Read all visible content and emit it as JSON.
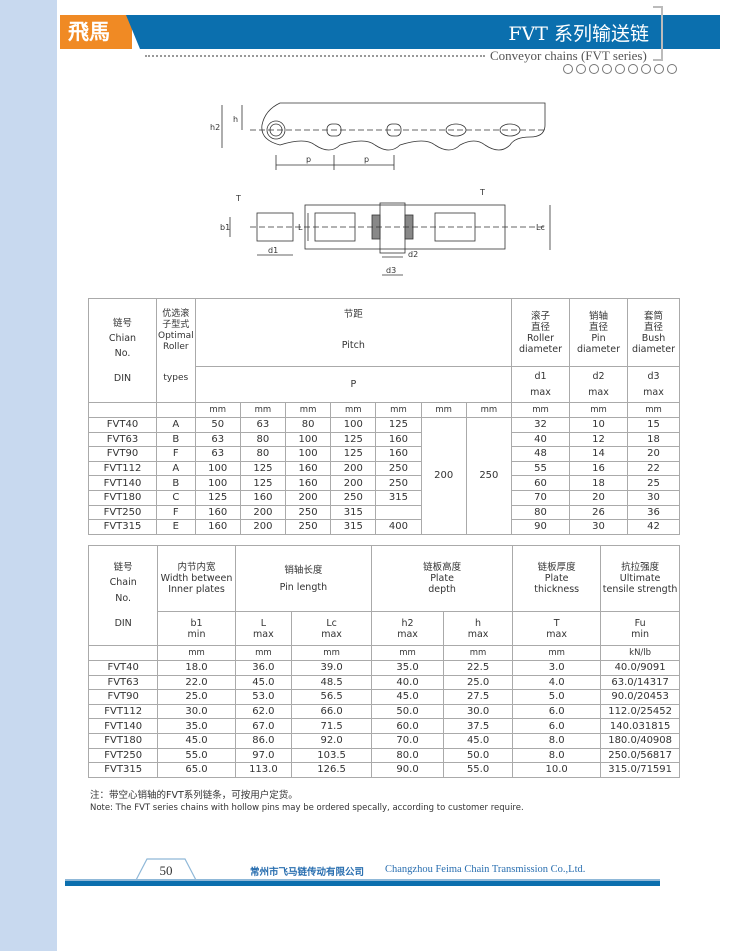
{
  "header": {
    "logo": "飛馬",
    "title": "FVT 系列输送链",
    "subtitle": "Conveyor chains (FVT series)",
    "brand_colors": {
      "orange": "#f08a24",
      "blue": "#0b6fae"
    }
  },
  "diagram": {
    "labels": [
      "h2",
      "h",
      "p",
      "p",
      "T",
      "b1",
      "L",
      "d1",
      "d2",
      "d3",
      "T",
      "Lc"
    ]
  },
  "table1": {
    "h_chain": [
      "链号",
      "Chian",
      "No.",
      "DIN"
    ],
    "h_roller": [
      "优选滚",
      "子型式",
      "Optimal",
      "Roller",
      "types"
    ],
    "h_pitch": [
      "节距",
      "Pitch",
      "P"
    ],
    "h_d1": [
      "滚子",
      "直径",
      "Roller",
      "diameter",
      "d1",
      "max"
    ],
    "h_d2": [
      "销轴",
      "直径",
      "Pin",
      "diameter",
      "d2",
      "max"
    ],
    "h_d3": [
      "套筒",
      "直径",
      "Bush",
      "diameter",
      "d3",
      "max"
    ],
    "unit": "mm",
    "merged_pitch": [
      "200",
      "250"
    ],
    "rows": [
      [
        "FVT40",
        "A",
        "50",
        "63",
        "80",
        "100",
        "125",
        "32",
        "10",
        "15"
      ],
      [
        "FVT63",
        "B",
        "63",
        "80",
        "100",
        "125",
        "160",
        "40",
        "12",
        "18"
      ],
      [
        "FVT90",
        "F",
        "63",
        "80",
        "100",
        "125",
        "160",
        "48",
        "14",
        "20"
      ],
      [
        "FVT112",
        "A",
        "100",
        "125",
        "160",
        "200",
        "250",
        "55",
        "16",
        "22"
      ],
      [
        "FVT140",
        "B",
        "100",
        "125",
        "160",
        "200",
        "250",
        "60",
        "18",
        "25"
      ],
      [
        "FVT180",
        "C",
        "125",
        "160",
        "200",
        "250",
        "315",
        "70",
        "20",
        "30"
      ],
      [
        "FVT250",
        "F",
        "160",
        "200",
        "250",
        "315",
        "",
        "80",
        "26",
        "36"
      ],
      [
        "FVT315",
        "E",
        "160",
        "200",
        "250",
        "315",
        "400",
        "90",
        "30",
        "42"
      ]
    ]
  },
  "table2": {
    "h_chain": [
      "链号",
      "Chain",
      "No.",
      "DIN"
    ],
    "h_b1": [
      "内节内宽",
      "Width between",
      "Inner plates",
      "b1",
      "min"
    ],
    "h_pin": [
      "销轴长度",
      "Pin length"
    ],
    "h_plate": [
      "链板高度",
      "Plate",
      "depth"
    ],
    "h_T": [
      "链板厚度",
      "Plate",
      "thickness",
      "T",
      "max"
    ],
    "h_Fu": [
      "抗拉强度",
      "Ultimate",
      "tensile strength",
      "Fu",
      "min"
    ],
    "sub": {
      "L": [
        "L",
        "max"
      ],
      "Lc": [
        "Lc",
        "max"
      ],
      "h2": [
        "h2",
        "max"
      ],
      "h": [
        "h",
        "max"
      ]
    },
    "units": [
      "mm",
      "mm",
      "mm",
      "mm",
      "mm",
      "mm",
      "kN/lb"
    ],
    "rows": [
      [
        "FVT40",
        "18.0",
        "36.0",
        "39.0",
        "35.0",
        "22.5",
        "3.0",
        "40.0/9091"
      ],
      [
        "FVT63",
        "22.0",
        "45.0",
        "48.5",
        "40.0",
        "25.0",
        "4.0",
        "63.0/14317"
      ],
      [
        "FVT90",
        "25.0",
        "53.0",
        "56.5",
        "45.0",
        "27.5",
        "5.0",
        "90.0/20453"
      ],
      [
        "FVT112",
        "30.0",
        "62.0",
        "66.0",
        "50.0",
        "30.0",
        "6.0",
        "112.0/25452"
      ],
      [
        "FVT140",
        "35.0",
        "67.0",
        "71.5",
        "60.0",
        "37.5",
        "6.0",
        "140.031815"
      ],
      [
        "FVT180",
        "45.0",
        "86.0",
        "92.0",
        "70.0",
        "45.0",
        "8.0",
        "180.0/40908"
      ],
      [
        "FVT250",
        "55.0",
        "97.0",
        "103.5",
        "80.0",
        "50.0",
        "8.0",
        "250.0/56817"
      ],
      [
        "FVT315",
        "65.0",
        "113.0",
        "126.5",
        "90.0",
        "55.0",
        "10.0",
        "315.0/71591"
      ]
    ]
  },
  "notes": {
    "cn": "注：带空心销轴的FVT系列链条，可按用户定货。",
    "en": "Note: The FVT series chains with hollow pins may be ordered specally, according to customer require."
  },
  "footer": {
    "page": "50",
    "company_cn": "常州市飞马链传动有限公司",
    "company_en": "Changzhou Feima Chain Transmission Co.,Ltd."
  }
}
